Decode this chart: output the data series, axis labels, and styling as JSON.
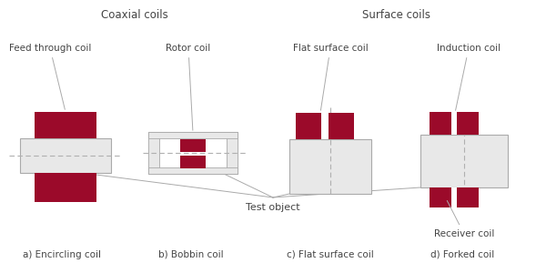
{
  "bg_color": "#ffffff",
  "gray_light": "#e8e8e8",
  "gray_border": "#aaaaaa",
  "dark_red": "#9b0a2a",
  "dashed_color": "#b0b0b0",
  "white": "#ffffff",
  "title_coaxial": "Coaxial coils",
  "title_surface": "Surface coils",
  "label_a": "a) Encircling coil",
  "label_b": "b) Bobbin coil",
  "label_c": "c) Flat surface coil",
  "label_d": "d) Forked coil",
  "ann_feed": "Feed through coil",
  "ann_rotor": "Rotor coil",
  "ann_flat": "Flat surface coil",
  "ann_induction": "Induction coil",
  "ann_receiver": "Receiver coil",
  "ann_test_obj": "Test object",
  "font_size_title": 8.5,
  "font_size_label": 7.5,
  "font_size_ann": 7.5
}
